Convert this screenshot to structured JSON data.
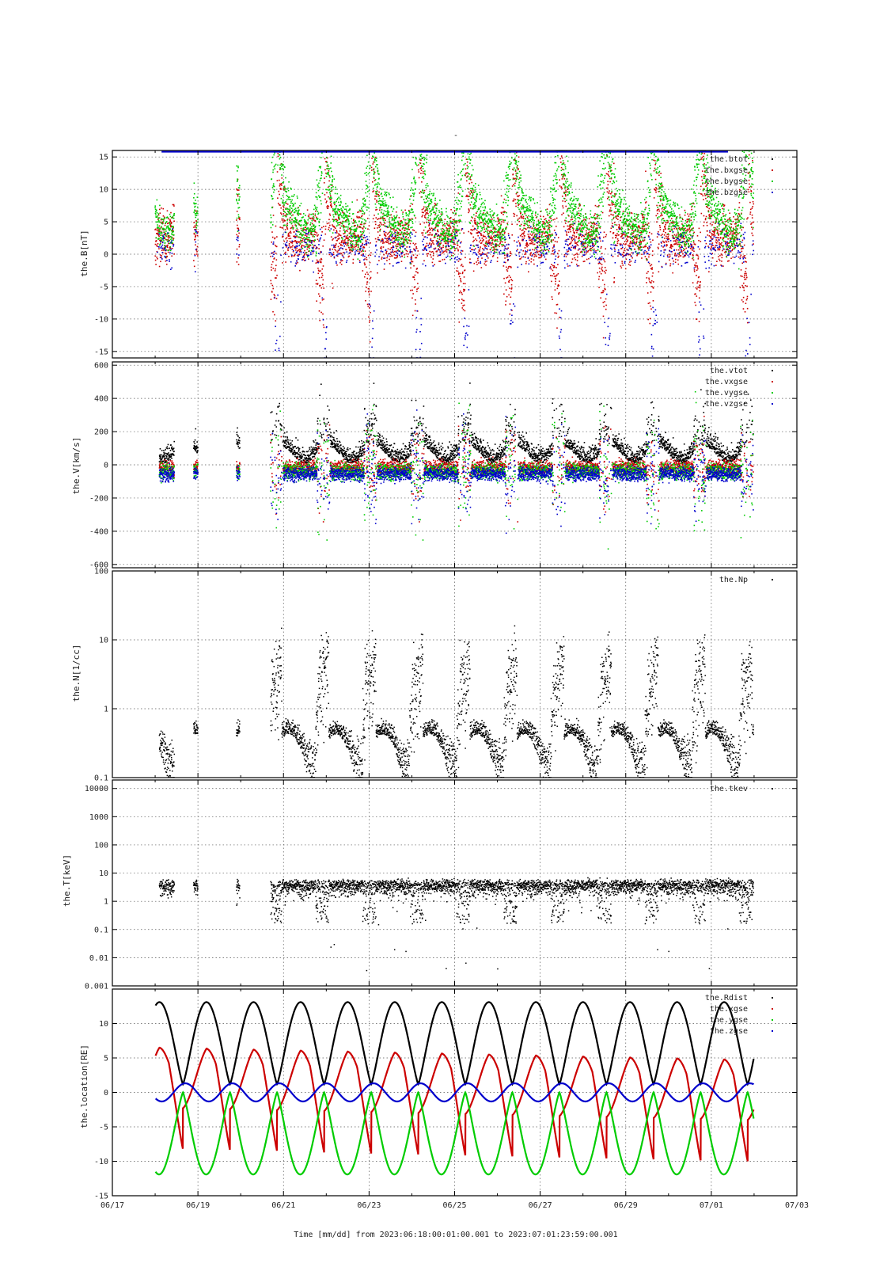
{
  "figure": {
    "title": "-",
    "xaxis_caption": "Time [mm/dd]  from 2023:06:18:00:01:00.001  to  2023:07:01:23:59:00.001"
  },
  "chart_data": [
    {
      "type": "scatter",
      "panel": "magnetic-field",
      "ylabel": "the.B[nT]",
      "ylim": [
        -16,
        16
      ],
      "yticks": [
        -15,
        -10,
        -5,
        0,
        5,
        10,
        15
      ],
      "ytick_labels": [
        "-15",
        "-10",
        "-5",
        "0",
        "5",
        "10",
        "15"
      ],
      "grid": true,
      "legend": "top-right",
      "series": [
        {
          "name": "the.btot",
          "color": "#000000"
        },
        {
          "name": "the.bxgse",
          "color": "#cc0000"
        },
        {
          "name": "the.bygse",
          "color": "#00cc00"
        },
        {
          "name": "the.bzgse",
          "color": "#0000cc"
        }
      ]
    },
    {
      "type": "scatter",
      "panel": "velocity",
      "ylabel": "the.V[km/s]",
      "ylim": [
        -620,
        620
      ],
      "yticks": [
        -600,
        -400,
        -200,
        0,
        200,
        400,
        600
      ],
      "ytick_labels": [
        "-600",
        "-400",
        "-200",
        "0",
        "200",
        "400",
        "600"
      ],
      "grid": true,
      "legend": "top-right",
      "series": [
        {
          "name": "the.vtot",
          "color": "#000000"
        },
        {
          "name": "the.vxgse",
          "color": "#cc0000"
        },
        {
          "name": "the.vygse",
          "color": "#00cc00"
        },
        {
          "name": "the.vzgse",
          "color": "#0000cc"
        }
      ]
    },
    {
      "type": "scatter",
      "panel": "density",
      "ylabel": "the.N[1/cc]",
      "yscale": "log",
      "ylim": [
        0.1,
        100
      ],
      "yticks": [
        0.1,
        1,
        10,
        100
      ],
      "ytick_labels": [
        "0.1",
        "1",
        "10",
        "100"
      ],
      "grid": true,
      "legend": "top-right",
      "series": [
        {
          "name": "the.Np",
          "color": "#000000"
        }
      ]
    },
    {
      "type": "scatter",
      "panel": "temperature",
      "ylabel": "the.T[keV]",
      "yscale": "log",
      "ylim": [
        0.001,
        20000
      ],
      "yticks": [
        0.001,
        0.01,
        0.1,
        1,
        10,
        100,
        1000,
        10000
      ],
      "ytick_labels": [
        "0.001",
        "0.01",
        "0.1",
        "1",
        "10",
        "100",
        "1000",
        "10000"
      ],
      "grid": true,
      "legend": "top-right",
      "series": [
        {
          "name": "the.tkev",
          "color": "#000000"
        }
      ]
    },
    {
      "type": "line",
      "panel": "location",
      "ylabel": "the.location[RE]",
      "ylim": [
        -15,
        15
      ],
      "yticks": [
        -15,
        -10,
        -5,
        0,
        5,
        10
      ],
      "ytick_labels": [
        "-15",
        "-10",
        "-5",
        "0",
        "5",
        "10"
      ],
      "grid": true,
      "legend": "top-right",
      "series": [
        {
          "name": "the.Rdist",
          "color": "#000000"
        },
        {
          "name": "the.xgse",
          "color": "#cc0000"
        },
        {
          "name": "the.ygse",
          "color": "#00cc00"
        },
        {
          "name": "the.zgse",
          "color": "#0000cc"
        }
      ]
    }
  ],
  "xaxis": {
    "range": [
      "06/17",
      "07/03"
    ],
    "tick_labels": [
      "06/17",
      "06/19",
      "06/21",
      "06/23",
      "06/25",
      "06/27",
      "06/29",
      "07/01",
      "07/03"
    ],
    "data_start": "06/18 00:01",
    "data_end": "07/01 23:59"
  },
  "colors": {
    "black": "#000000",
    "red": "#cc0000",
    "green": "#00cc00",
    "blue": "#0000cc",
    "grid": "#555555"
  }
}
